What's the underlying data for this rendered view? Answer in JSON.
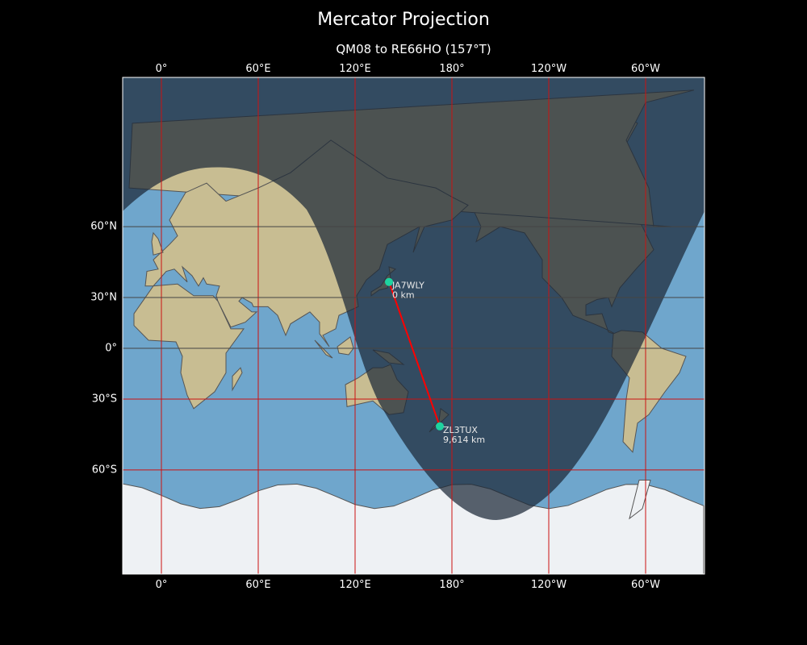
{
  "title": "Mercator Projection",
  "subtitle": "QM08 to RE66HO (157°T)",
  "x_ticks": [
    "0°",
    "60°E",
    "120°E",
    "180°",
    "120°W",
    "60°W"
  ],
  "x_tick_lons": [
    0,
    60,
    120,
    180,
    240,
    300
  ],
  "y_ticks": [
    "60°N",
    "30°N",
    "0°",
    "30°S",
    "60°S"
  ],
  "y_tick_lats": [
    60,
    30,
    0,
    -30,
    -60
  ],
  "path": {
    "color": "#ff0000",
    "bearing": "157°T",
    "start": {
      "callsign": "JA7WLY",
      "distance": "0 km",
      "lon": 141,
      "lat": 38
    },
    "end": {
      "callsign": "ZL3TUX",
      "distance": "9,614 km",
      "lon": 172.5,
      "lat": -43.5
    }
  },
  "colors": {
    "marker": "#1ed3a0",
    "grid": "#cc1111",
    "ocean": "#6fa6cc",
    "land": "#c8bd92",
    "night": "#1c2838"
  }
}
